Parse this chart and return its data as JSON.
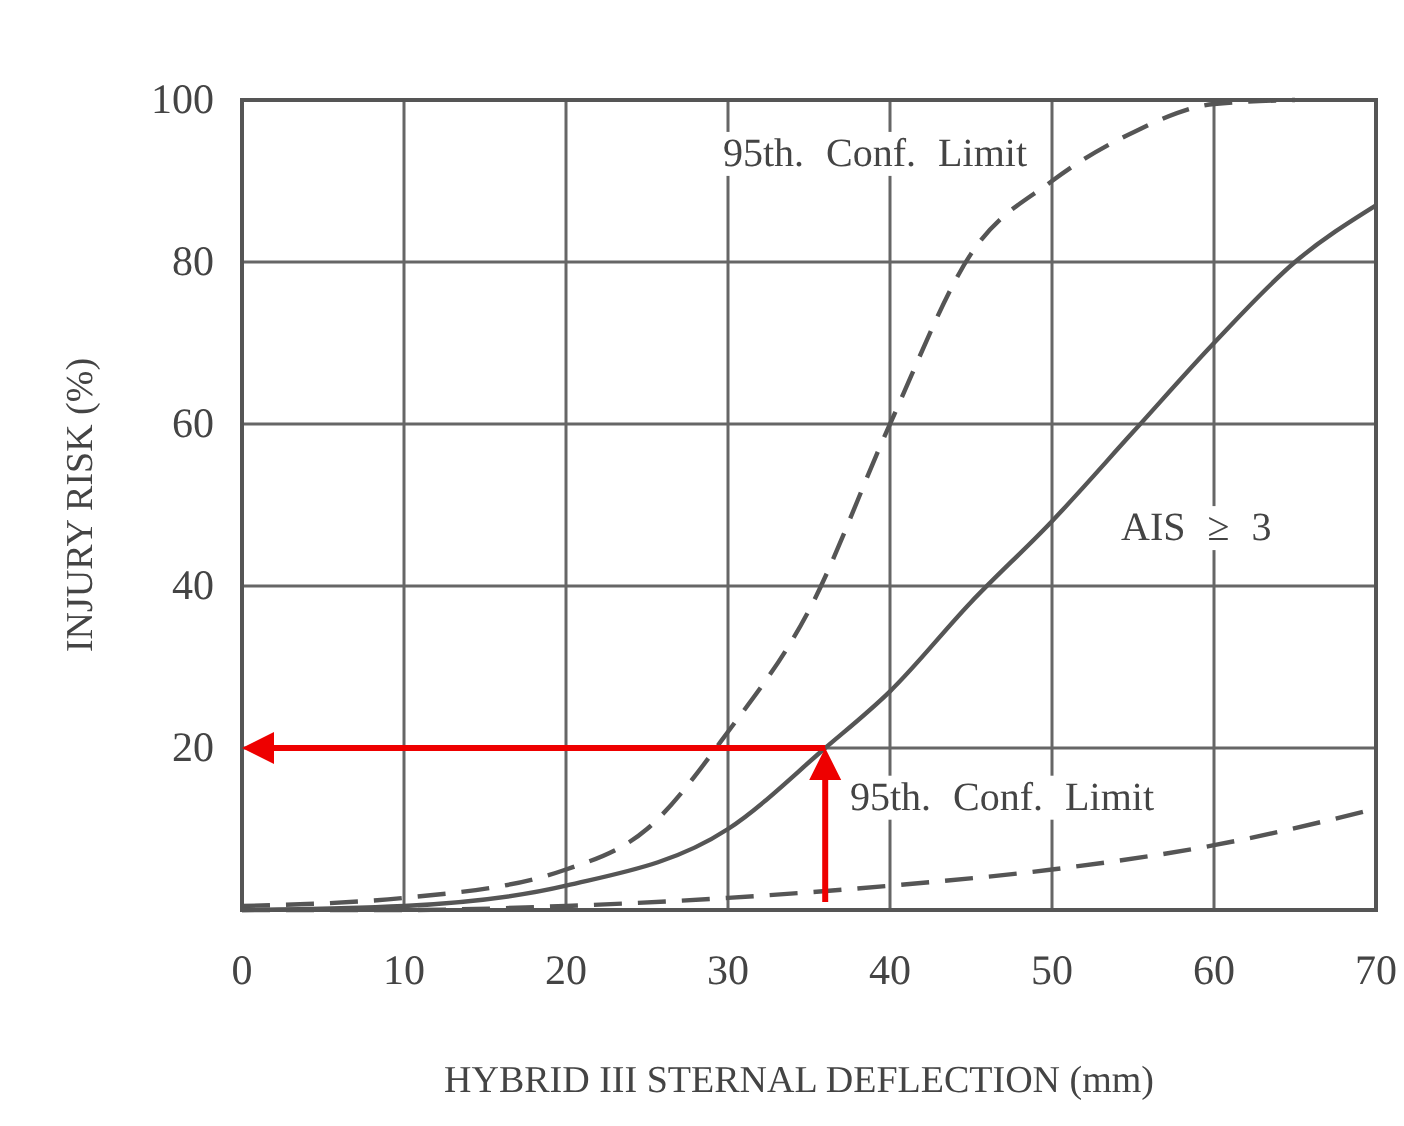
{
  "chart_data": {
    "type": "line",
    "xlabel": "HYBRID III STERNAL DEFLECTION (mm)",
    "ylabel": "INJURY RISK (%)",
    "xlim": [
      0,
      70
    ],
    "ylim": [
      0,
      100
    ],
    "xticks": [
      0,
      10,
      20,
      30,
      40,
      50,
      60,
      70
    ],
    "yticks": [
      20,
      40,
      60,
      80,
      100
    ],
    "grid": true,
    "series": [
      {
        "name": "95th. Conf. Limit",
        "color": "#555555",
        "line_style": "dashed",
        "x": [
          0,
          10,
          20,
          25,
          30,
          35,
          40,
          45,
          50,
          55,
          60,
          65
        ],
        "values": [
          0.5,
          1.5,
          5,
          10,
          22,
          37,
          60,
          81,
          90,
          96,
          99.5,
          100
        ]
      },
      {
        "name": "AIS ≥ 3",
        "color": "#555555",
        "line_style": "solid",
        "x": [
          0,
          10,
          20,
          30,
          36,
          40,
          45,
          50,
          55,
          60,
          65,
          70
        ],
        "values": [
          0,
          0.5,
          3,
          10,
          20,
          27,
          38,
          48,
          59,
          70,
          80,
          87
        ]
      },
      {
        "name": "95th. Conf. Limit",
        "color": "#555555",
        "line_style": "dashed",
        "x": [
          0,
          10,
          20,
          30,
          40,
          50,
          60,
          70
        ],
        "values": [
          0,
          0,
          0.5,
          1.5,
          3,
          5,
          8,
          12.5
        ]
      }
    ]
  }
}
